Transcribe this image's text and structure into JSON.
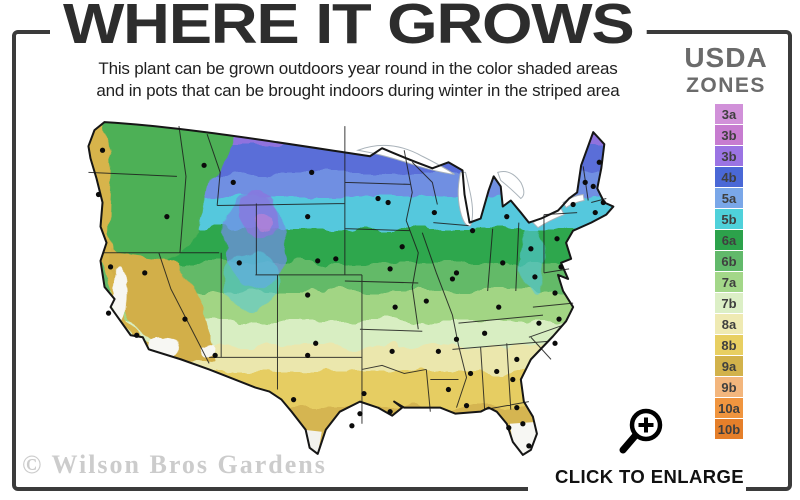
{
  "header": {
    "title": "WHERE IT GROWS",
    "subtitle_line1": "This plant can be grown outdoors year round in the color shaded areas",
    "subtitle_line2": "and in pots that can be brought indoors during winter in the striped area"
  },
  "legend": {
    "heading_line1": "USDA",
    "heading_line2": "ZONES",
    "zones": [
      {
        "label": "3a",
        "color": "#d191d9"
      },
      {
        "label": "3b",
        "color": "#c77cd0"
      },
      {
        "label": "3b",
        "color": "#9b74e3"
      },
      {
        "label": "4b",
        "color": "#4a68d6"
      },
      {
        "label": "5a",
        "color": "#7aa7e8"
      },
      {
        "label": "5b",
        "color": "#4fd1da"
      },
      {
        "label": "6a",
        "color": "#2ca24b"
      },
      {
        "label": "6b",
        "color": "#62b96b"
      },
      {
        "label": "7a",
        "color": "#a3d789"
      },
      {
        "label": "7b",
        "color": "#dcefc6"
      },
      {
        "label": "8a",
        "color": "#efeab3"
      },
      {
        "label": "8b",
        "color": "#e8cf62"
      },
      {
        "label": "9a",
        "color": "#d2b24b"
      },
      {
        "label": "9b",
        "color": "#f3b67d"
      },
      {
        "label": "10a",
        "color": "#f0953f"
      },
      {
        "label": "10b",
        "color": "#e57f2a"
      }
    ]
  },
  "footer": {
    "watermark": "© Wilson Bros Gardens",
    "enlarge_label": "CLICK TO ENLARGE"
  },
  "colors": {
    "frame": "#3b3b3b",
    "title": "#2d2d2d",
    "heading_gray": "#6b6b6b",
    "watermark_gray": "#cccccc"
  }
}
